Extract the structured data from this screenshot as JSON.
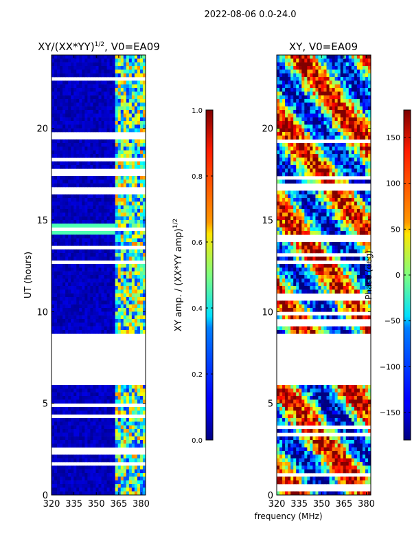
{
  "page_title": "2022-08-06 0.0-24.0",
  "chart_data": [
    {
      "type": "heatmap",
      "title_prefix": "XY/(XX*YY)",
      "title_sup": "1/2",
      "title_suffix": ", V0=EA09",
      "xlabel": "",
      "ylabel": "UT (hours)",
      "xlim": [
        320,
        383
      ],
      "ylim": [
        0,
        24
      ],
      "xticks": [
        320,
        335,
        350,
        365,
        380
      ],
      "yticks": [
        0,
        5,
        10,
        15,
        20
      ],
      "colormap": "jet",
      "colorbar": {
        "label_prefix": "XY amp. / (XX*YY amp)",
        "label_sup": "1/2",
        "range": [
          0.0,
          1.0
        ],
        "ticks": [
          "0.0",
          "0.2",
          "0.4",
          "0.6",
          "0.8",
          "1.0"
        ],
        "tick_values": [
          0.0,
          0.2,
          0.4,
          0.6,
          0.8,
          1.0
        ]
      },
      "no_data_hours": [
        [
          5.9,
          8.8
        ]
      ]
    },
    {
      "type": "heatmap",
      "title": "XY, V0=EA09",
      "xlabel": "frequency (MHz)",
      "ylabel": "",
      "xlim": [
        320,
        383
      ],
      "ylim": [
        0,
        24
      ],
      "xticks": [
        320,
        335,
        350,
        365,
        380
      ],
      "yticks": [
        0,
        5,
        10,
        15,
        20
      ],
      "colormap": "jet",
      "colorbar": {
        "label": "Phase (deg)",
        "range": [
          -180,
          180
        ],
        "ticks": [
          "−150",
          "−100",
          "−50",
          "0",
          "50",
          "100",
          "150"
        ],
        "tick_values": [
          -150,
          -100,
          -50,
          0,
          50,
          100,
          150
        ]
      },
      "no_data_hours": [
        [
          5.9,
          8.8
        ]
      ]
    }
  ]
}
